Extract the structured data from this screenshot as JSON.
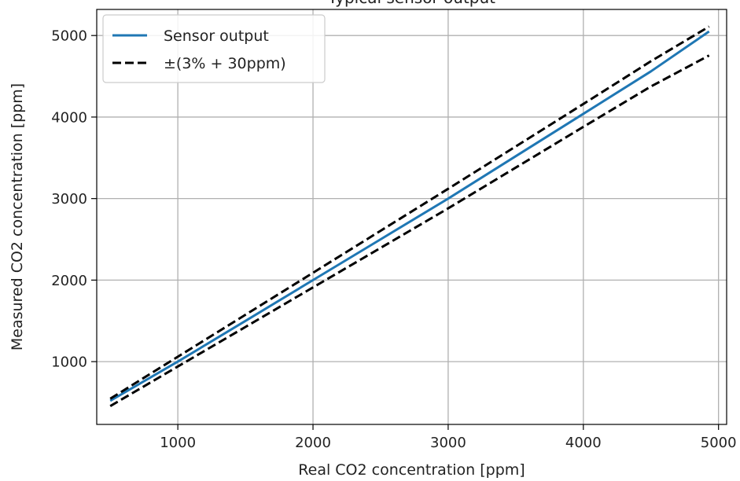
{
  "chart_data": {
    "type": "line",
    "title": "Typical sensor output",
    "xlabel": "Real CO2 concentration [ppm]",
    "ylabel": "Measured CO2 concentration [ppm]",
    "xlim": [
      400,
      5060
    ],
    "ylim": [
      230,
      5320
    ],
    "xticks": [
      1000,
      2000,
      3000,
      4000,
      5000
    ],
    "yticks": [
      1000,
      2000,
      3000,
      4000,
      5000
    ],
    "grid": true,
    "legend_position": "upper-left",
    "series": [
      {
        "name": "Sensor output",
        "color": "#1f77b4",
        "style": "solid",
        "x": [
          500,
          1000,
          1500,
          2000,
          2500,
          3000,
          3500,
          4000,
          4500,
          4930
        ],
        "y": [
          520,
          1000,
          1500,
          2000,
          2500,
          3000,
          3520,
          4040,
          4560,
          5050
        ]
      },
      {
        "name": "±(3% + 30ppm)",
        "color": "#000000",
        "style": "dashed",
        "x": [
          500,
          1000,
          1500,
          2000,
          2500,
          3000,
          3500,
          4000,
          4500,
          4930
        ],
        "y": [
          545,
          1060,
          1575,
          2090,
          2605,
          3120,
          3640,
          4160,
          4685,
          5110
        ]
      },
      {
        "name": "",
        "color": "#000000",
        "style": "dashed",
        "x": [
          500,
          1000,
          1500,
          2000,
          2500,
          3000,
          3500,
          4000,
          4500,
          4930
        ],
        "y": [
          455,
          940,
          1425,
          1910,
          2395,
          2880,
          3380,
          3880,
          4375,
          4755
        ]
      }
    ],
    "legend": [
      {
        "label": "Sensor output",
        "color": "#1f77b4",
        "style": "solid"
      },
      {
        "label": "±(3% + 30ppm)",
        "color": "#000000",
        "style": "dashed"
      }
    ]
  }
}
